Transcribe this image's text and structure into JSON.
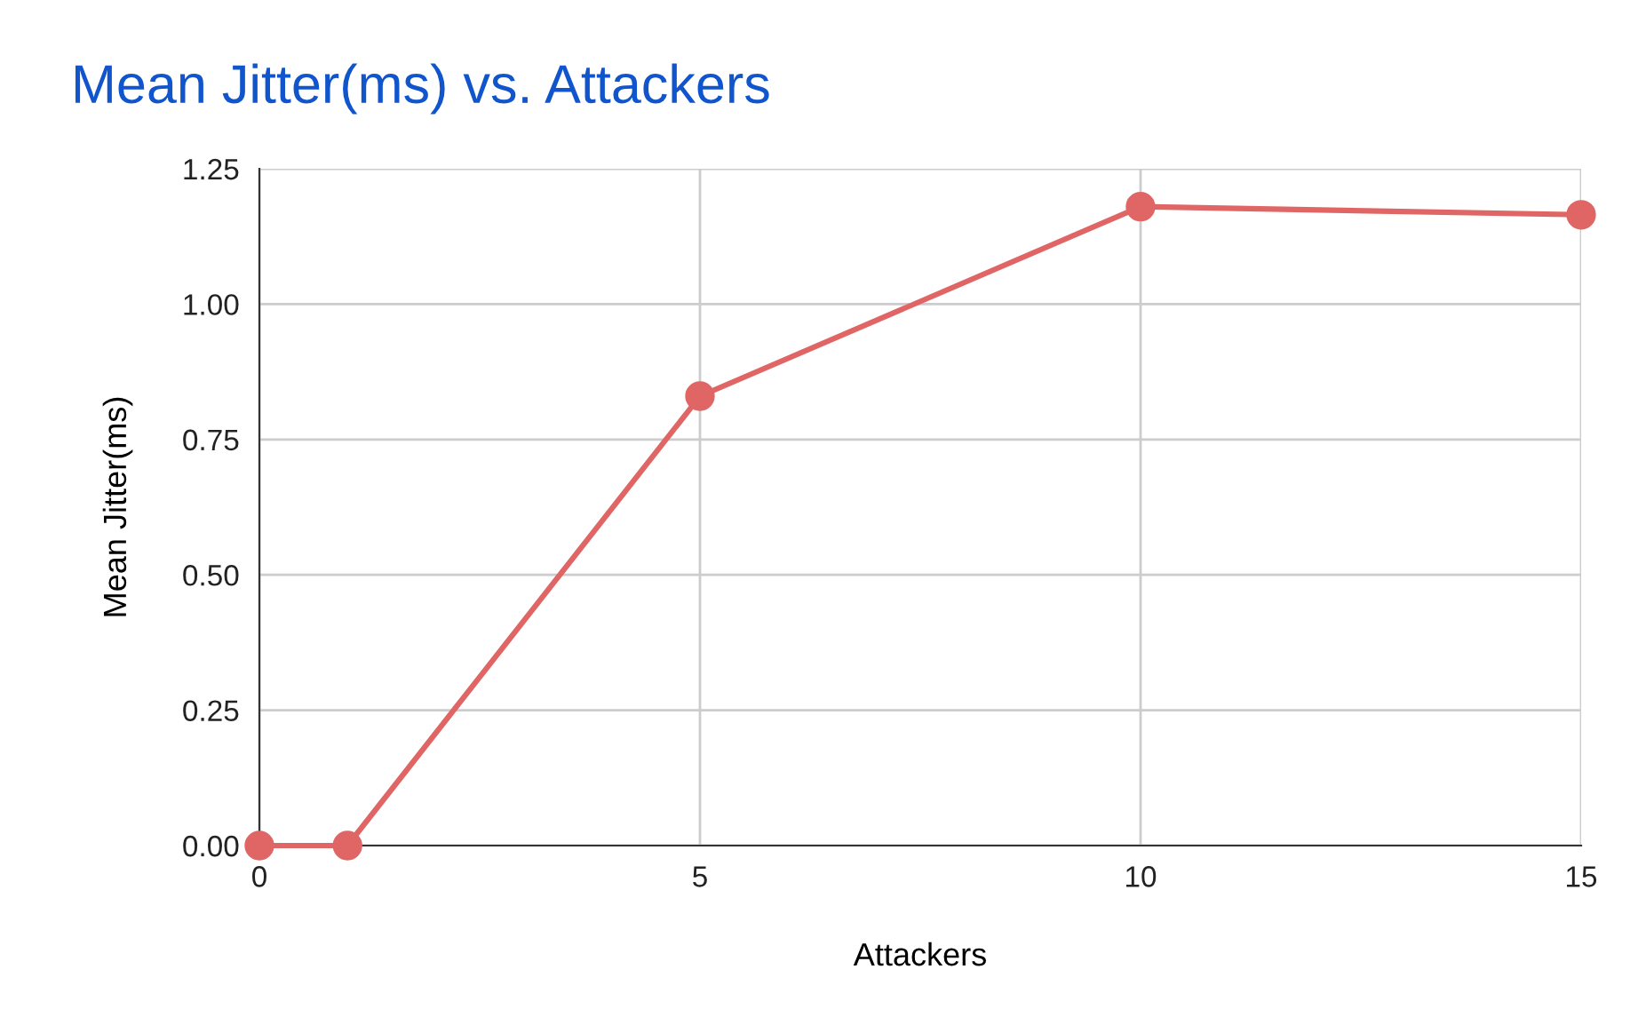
{
  "chart_data": {
    "type": "line",
    "title": "Mean Jitter(ms) vs. Attackers",
    "xlabel": "Attackers",
    "ylabel": "Mean Jitter(ms)",
    "x": [
      0,
      1,
      5,
      10,
      15
    ],
    "series": [
      {
        "color": "#e06666",
        "values": [
          0,
          0,
          0.83,
          1.18,
          1.165
        ]
      }
    ],
    "xlim": [
      0,
      15
    ],
    "xticks": [
      0,
      5,
      10,
      15
    ],
    "ylim": [
      0,
      1.25
    ],
    "yticks": [
      {
        "value": 0,
        "label": "0.00"
      },
      {
        "value": 0.25,
        "label": "0.25"
      },
      {
        "value": 0.5,
        "label": "0.50"
      },
      {
        "value": 0.75,
        "label": "0.75"
      },
      {
        "value": 1,
        "label": "1.00"
      },
      {
        "value": 1.25,
        "label": "1.25"
      }
    ],
    "grid": true,
    "marker": "circle",
    "line_style": "solid",
    "legend": false
  }
}
